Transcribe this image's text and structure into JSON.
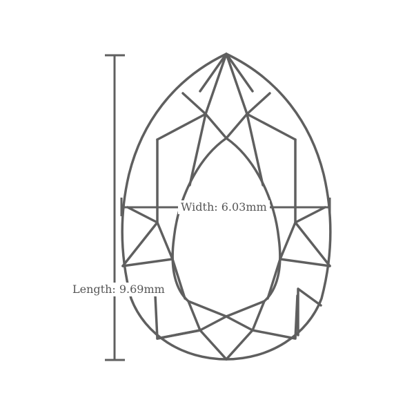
{
  "diagram": {
    "stroke_color": "#5f5f5f",
    "text_color": "#555555",
    "background": "#ffffff"
  },
  "labels": {
    "width": "Width: 6.03mm",
    "length": "Length: 9.69mm"
  }
}
